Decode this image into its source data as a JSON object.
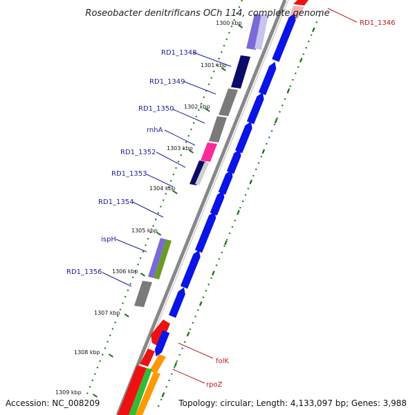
{
  "title": "Roseobacter denitrificans OCh 114, complete genome",
  "accession": "Accession: NC_008209",
  "topology": "Topology: circular; Length: 4,133,097 bp; Genes: 3,988",
  "ticks": [
    "1300 kbp",
    "1301 kbp",
    "1302 kbp",
    "1303 kbp",
    "1304 kbp",
    "1305 kbp",
    "1306 kbp",
    "1307 kbp",
    "1308 kbp",
    "1309 kbp"
  ],
  "gene_labels": [
    {
      "name": "RD1_1346",
      "strand": "forward",
      "color": "#c01818"
    },
    {
      "name": "RD1_1348",
      "strand": "reverse",
      "color": "#1b1b9a"
    },
    {
      "name": "RD1_1349",
      "strand": "reverse",
      "color": "#1b1b9a"
    },
    {
      "name": "RD1_1350",
      "strand": "reverse",
      "color": "#1b1b9a"
    },
    {
      "name": "rnhA",
      "strand": "reverse",
      "color": "#1b1b9a"
    },
    {
      "name": "RD1_1352",
      "strand": "reverse",
      "color": "#1b1b9a"
    },
    {
      "name": "RD1_1353",
      "strand": "reverse",
      "color": "#1b1b9a"
    },
    {
      "name": "RD1_1354",
      "strand": "reverse",
      "color": "#1b1b9a"
    },
    {
      "name": "ispH",
      "strand": "reverse",
      "color": "#1b1b9a"
    },
    {
      "name": "RD1_1356",
      "strand": "reverse",
      "color": "#1b1b9a"
    },
    {
      "name": "folK",
      "strand": "forward",
      "color": "#c01818"
    },
    {
      "name": "rpoZ",
      "strand": "forward",
      "color": "#c01818"
    }
  ],
  "colors": {
    "cds_blue": "#0a14e6",
    "backbone": "#888888",
    "gc_skew": "#1a7a1a",
    "dark_navy": "#0b0b6a",
    "gray": "#7a7a7a",
    "magenta": "#ff2a9a",
    "violet": "#7a6ad8",
    "olive_green": "#6a9a2a",
    "red": "#ee1111",
    "orange": "#ff9900",
    "green": "#33bb33"
  }
}
